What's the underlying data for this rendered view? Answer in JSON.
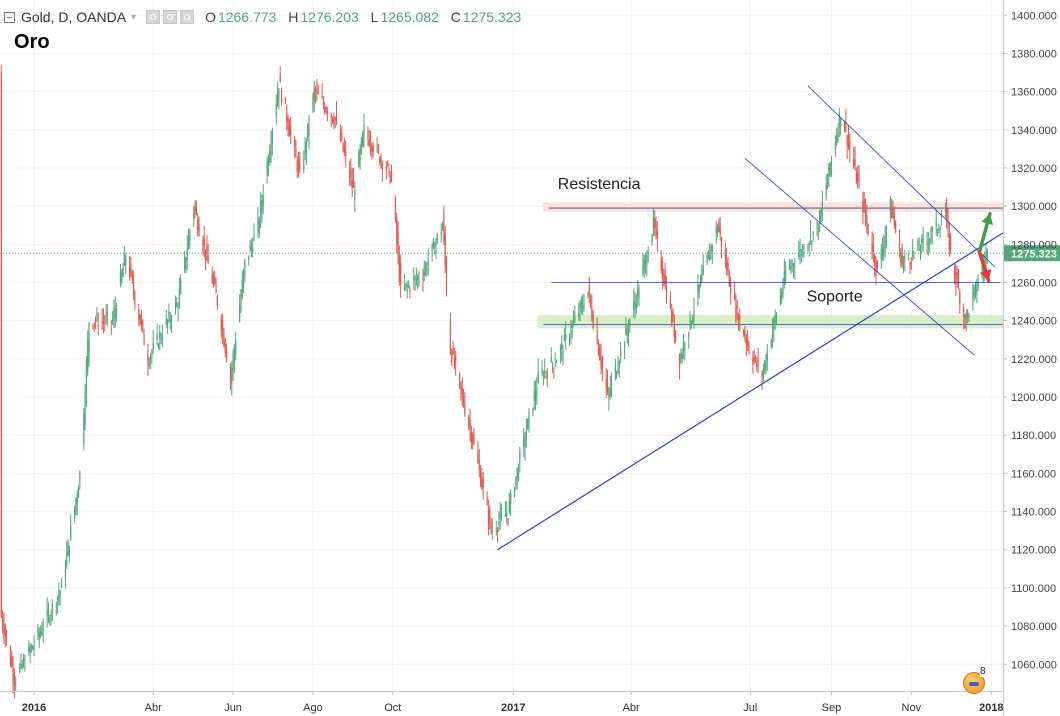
{
  "legend": {
    "symbol": "Gold, D, OANDA",
    "caret": "▾",
    "open_label": "O",
    "open": "1266.773",
    "high_label": "H",
    "high": "1276.203",
    "low_label": "L",
    "low": "1265.082",
    "close_label": "C",
    "close": "1275.323"
  },
  "chart_title": "Oro",
  "badge_count": "8",
  "colors": {
    "up": "#53a87a",
    "down": "#e0584f",
    "trendline": "#1f3fd8",
    "resistance_zone": "#fbd9c4",
    "support_zone": "#cfe8b8",
    "last_price": "#53a87a",
    "green_arrow": "#43a047",
    "red_arrow": "#e53935"
  },
  "chart_data": {
    "type": "candlestick",
    "title": "Oro",
    "symbol": "Gold, D, OANDA",
    "ylim": [
      1046,
      1408
    ],
    "y_ticks": [
      1060,
      1080,
      1100,
      1120,
      1140,
      1160,
      1180,
      1200,
      1220,
      1240,
      1260,
      1280,
      1300,
      1320,
      1340,
      1360,
      1380,
      1400
    ],
    "y_tick_labels": [
      "1060.000",
      "1080.000",
      "1100.000",
      "1120.000",
      "1140.000",
      "1160.000",
      "1180.000",
      "1200.000",
      "1220.000",
      "1240.000",
      "1260.000",
      "1280.000",
      "1300.000",
      "1320.000",
      "1340.000",
      "1360.000",
      "1380.000",
      "1400.000"
    ],
    "x_range": [
      "2015-12-06",
      "2018-01-10"
    ],
    "x_ticks": [
      {
        "date": "2016-01-01",
        "label": "2016",
        "bold": true
      },
      {
        "date": "2016-04-01",
        "label": "Abr",
        "bold": false
      },
      {
        "date": "2016-06-01",
        "label": "Jun",
        "bold": false
      },
      {
        "date": "2016-08-01",
        "label": "Ago",
        "bold": false
      },
      {
        "date": "2016-10-01",
        "label": "Oct",
        "bold": false
      },
      {
        "date": "2017-01-01",
        "label": "2017",
        "bold": true
      },
      {
        "date": "2017-04-01",
        "label": "Abr",
        "bold": false
      },
      {
        "date": "2017-07-01",
        "label": "Jul",
        "bold": false
      },
      {
        "date": "2017-09-01",
        "label": "Sep",
        "bold": false
      },
      {
        "date": "2017-11-01",
        "label": "Nov",
        "bold": false
      },
      {
        "date": "2018-01-01",
        "label": "2018",
        "bold": true
      }
    ],
    "price_path": [
      [
        "2015-12-07",
        1085
      ],
      [
        "2015-12-17",
        1052
      ],
      [
        "2016-01-04",
        1075
      ],
      [
        "2016-01-22",
        1100
      ],
      [
        "2016-02-05",
        1160
      ],
      [
        "2016-02-12",
        1240
      ],
      [
        "2016-03-01",
        1240
      ],
      [
        "2016-03-11",
        1275
      ],
      [
        "2016-03-28",
        1220
      ],
      [
        "2016-04-20",
        1250
      ],
      [
        "2016-05-02",
        1300
      ],
      [
        "2016-05-20",
        1250
      ],
      [
        "2016-05-30",
        1210
      ],
      [
        "2016-06-10",
        1270
      ],
      [
        "2016-06-20",
        1290
      ],
      [
        "2016-07-06",
        1365
      ],
      [
        "2016-07-22",
        1315
      ],
      [
        "2016-08-02",
        1360
      ],
      [
        "2016-08-18",
        1345
      ],
      [
        "2016-09-01",
        1308
      ],
      [
        "2016-09-09",
        1340
      ],
      [
        "2016-09-30",
        1315
      ],
      [
        "2016-10-07",
        1255
      ],
      [
        "2016-10-24",
        1265
      ],
      [
        "2016-11-08",
        1290
      ],
      [
        "2016-11-14",
        1225
      ],
      [
        "2016-12-02",
        1175
      ],
      [
        "2016-12-15",
        1130
      ],
      [
        "2016-12-28",
        1140
      ],
      [
        "2017-01-20",
        1210
      ],
      [
        "2017-02-03",
        1220
      ],
      [
        "2017-02-27",
        1255
      ],
      [
        "2017-03-14",
        1200
      ],
      [
        "2017-04-06",
        1255
      ],
      [
        "2017-04-18",
        1290
      ],
      [
        "2017-05-08",
        1220
      ],
      [
        "2017-05-26",
        1265
      ],
      [
        "2017-06-06",
        1290
      ],
      [
        "2017-06-20",
        1245
      ],
      [
        "2017-07-03",
        1220
      ],
      [
        "2017-07-10",
        1212
      ],
      [
        "2017-07-28",
        1265
      ],
      [
        "2017-08-22",
        1290
      ],
      [
        "2017-09-08",
        1350
      ],
      [
        "2017-09-25",
        1300
      ],
      [
        "2017-10-06",
        1265
      ],
      [
        "2017-10-16",
        1300
      ],
      [
        "2017-10-25",
        1270
      ],
      [
        "2017-11-10",
        1280
      ],
      [
        "2017-11-27",
        1295
      ],
      [
        "2017-12-01",
        1275
      ],
      [
        "2017-12-12",
        1240
      ],
      [
        "2017-12-29",
        1275
      ]
    ],
    "last_price": {
      "value": 1275.323,
      "label": "1275.323"
    },
    "zones": [
      {
        "name": "Resistencia",
        "from": 1297,
        "to": 1302,
        "x_start": "2017-01-28",
        "line": 1299
      },
      {
        "name": "Soporte zone",
        "from": 1236,
        "to": 1243,
        "x_start": "2017-01-24",
        "line": 1238
      }
    ],
    "lines": [
      {
        "name": "uptrend",
        "p1": [
          "2016-12-20",
          1120
        ],
        "p2": [
          "2018-01-10",
          1286
        ]
      },
      {
        "name": "support-line",
        "p1": [
          "2017-01-30",
          1260
        ],
        "p2": [
          "2018-01-08",
          1260
        ]
      },
      {
        "name": "channel-upper",
        "p1": [
          "2017-08-14",
          1363
        ],
        "p2": [
          "2018-01-04",
          1268
        ]
      },
      {
        "name": "channel-lower",
        "p1": [
          "2017-06-27",
          1325
        ],
        "p2": [
          "2017-12-19",
          1222
        ]
      }
    ],
    "annotations": [
      {
        "text": "Resistencia",
        "date": "2017-02-04",
        "value": 1309
      },
      {
        "text": "Soporte",
        "date": "2017-08-13",
        "value": 1250
      }
    ],
    "arrows": [
      {
        "name": "up",
        "from": [
          "2017-12-23",
          1276
        ],
        "to": [
          "2017-12-31",
          1296
        ]
      },
      {
        "name": "down",
        "from": [
          "2017-12-23",
          1276
        ],
        "to": [
          "2017-12-30",
          1261
        ]
      }
    ]
  }
}
